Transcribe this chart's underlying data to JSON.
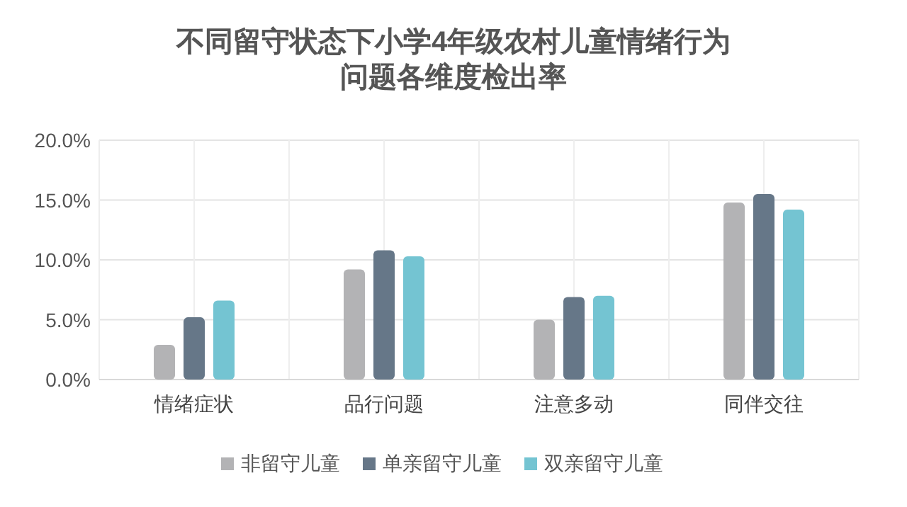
{
  "chart_data": {
    "type": "bar",
    "title": "不同留守状态下小学4年级农村儿童情绪行为问题各维度检出率",
    "categories": [
      "情绪症状",
      "品行问题",
      "注意多动",
      "同伴交往"
    ],
    "series": [
      {
        "name": "非留守儿童",
        "color": "#b3b3b5",
        "values": [
          2.9,
          9.2,
          5.0,
          14.8
        ]
      },
      {
        "name": "单亲留守儿童",
        "color": "#667788",
        "values": [
          5.2,
          10.8,
          6.9,
          15.5
        ]
      },
      {
        "name": "双亲留守儿童",
        "color": "#74c4d2",
        "values": [
          6.6,
          10.3,
          7.0,
          14.2
        ]
      }
    ],
    "ylim": [
      0,
      20
    ],
    "yticks": [
      {
        "value": 0,
        "label": "0.0%"
      },
      {
        "value": 5,
        "label": "5.0%"
      },
      {
        "value": 10,
        "label": "10.0%"
      },
      {
        "value": 15,
        "label": "15.0%"
      },
      {
        "value": 20,
        "label": "20.0%"
      }
    ],
    "grid": true,
    "legend": "bottom"
  }
}
